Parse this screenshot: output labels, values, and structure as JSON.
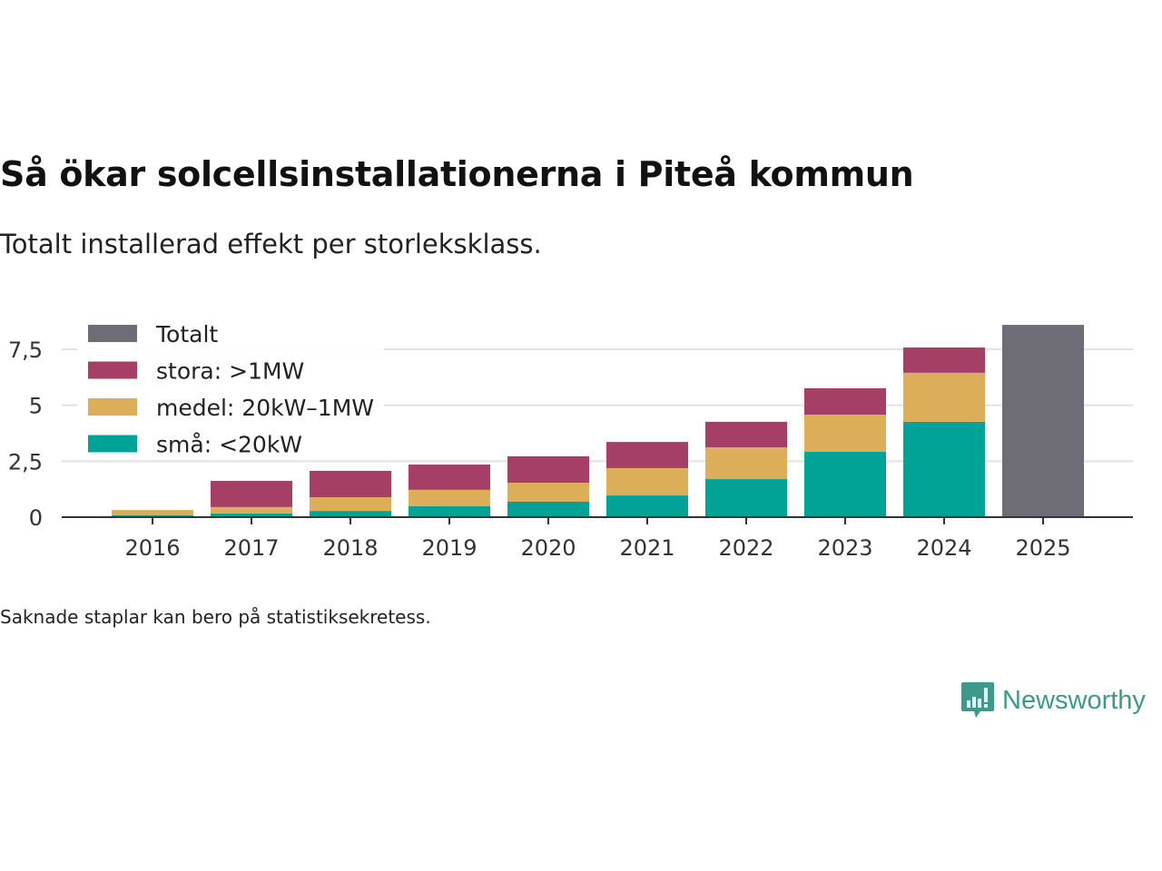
{
  "title": "Så ökar solcellsinstallationerna i Piteå kommun",
  "subtitle": "Totalt installerad effekt per storleksklass.",
  "note": "Saknade staplar kan bero på statistiksekretess.",
  "logo": "Newsworthy",
  "chart_data": {
    "type": "bar",
    "stacked": true,
    "categories": [
      "2016",
      "2017",
      "2018",
      "2019",
      "2020",
      "2021",
      "2022",
      "2023",
      "2024",
      "2025"
    ],
    "series": [
      {
        "name": "små: <20kW",
        "color": "#00a396",
        "values": [
          0.08,
          0.16,
          0.28,
          0.49,
          0.69,
          0.97,
          1.7,
          2.92,
          4.26,
          null
        ]
      },
      {
        "name": "medel: 20kW–1MW",
        "color": "#dcae5a",
        "values": [
          0.24,
          0.29,
          0.61,
          0.73,
          0.85,
          1.22,
          1.42,
          1.66,
          2.19,
          null
        ]
      },
      {
        "name": "stora: >1MW",
        "color": "#a63f66",
        "values": [
          0,
          1.17,
          1.18,
          1.13,
          1.18,
          1.17,
          1.14,
          1.18,
          1.13,
          null
        ]
      },
      {
        "name": "Totalt",
        "color": "#6e6c74",
        "values": [
          null,
          null,
          null,
          null,
          null,
          null,
          null,
          null,
          null,
          8.59
        ]
      }
    ],
    "yticks": [
      0,
      2.5,
      5,
      7.5
    ],
    "ytick_labels": [
      "0",
      "2,5",
      "5",
      "7,5"
    ],
    "ylim": [
      0,
      8.7
    ],
    "grid": true,
    "legend_placement": "top-left",
    "legend_order": [
      "Totalt",
      "stora: >1MW",
      "medel: 20kW–1MW",
      "små: <20kW"
    ]
  }
}
